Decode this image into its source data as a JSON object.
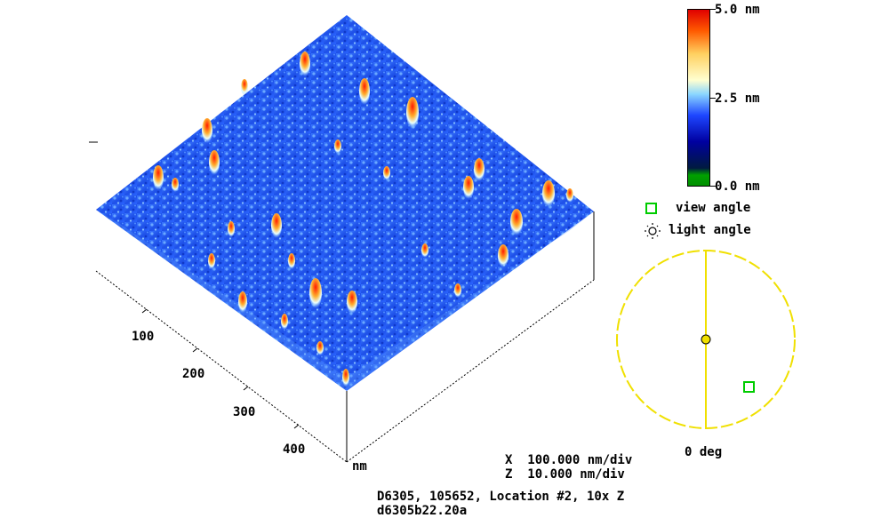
{
  "colorbar": {
    "max_label": "5.0 nm",
    "mid_label": "2.5 nm",
    "min_label": "0.0 nm",
    "colors": [
      "#00a000",
      "#00008b",
      "#1e3cff",
      "#5aa0ff",
      "#aee8ff",
      "#ffffd0",
      "#ffc000",
      "#ff4000",
      "#e00000"
    ]
  },
  "legend": {
    "view_angle": "view angle",
    "light_angle": "light angle"
  },
  "orientation": {
    "zero_label": "0 deg",
    "circle_color": "#f0e000",
    "view_marker_color": "#00cc00"
  },
  "axis": {
    "ticks": [
      "100",
      "200",
      "300",
      "400"
    ],
    "unit": "nm"
  },
  "scale_info": {
    "x_scale": "X  100.000 nm/div",
    "z_scale": "Z  10.000 nm/div"
  },
  "file_info": {
    "line1": "D6305, 105652, Location #2, 10x Z",
    "line2": "d6305b22.20a"
  }
}
